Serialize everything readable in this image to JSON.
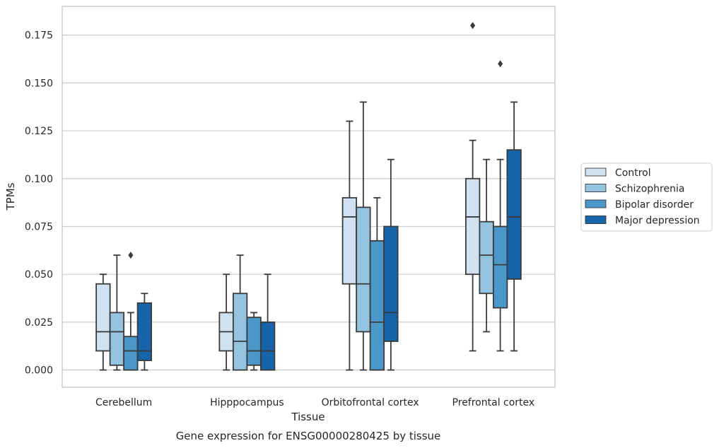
{
  "chart_data": {
    "type": "box",
    "title": "",
    "caption": "Gene expression for ENSG00000280425 by tissue",
    "xlabel": "Tissue",
    "ylabel": "TPMs",
    "ylim": [
      -0.009,
      0.19
    ],
    "yticks": [
      0.0,
      0.025,
      0.05,
      0.075,
      0.1,
      0.125,
      0.15,
      0.175
    ],
    "ytick_labels": [
      "0.000",
      "0.025",
      "0.050",
      "0.075",
      "0.100",
      "0.125",
      "0.150",
      "0.175"
    ],
    "grid": "horizontal",
    "legend_position": "right",
    "categories": [
      "Cerebellum",
      "Hipppocampus",
      "Orbitofrontal cortex",
      "Prefrontal cortex"
    ],
    "series": [
      {
        "name": "Control",
        "color": "#d0e1f2",
        "boxes": [
          {
            "whislo": 0.0,
            "q1": 0.01,
            "med": 0.02,
            "q3": 0.045,
            "whishi": 0.05,
            "fliers": []
          },
          {
            "whislo": 0.0,
            "q1": 0.01,
            "med": 0.02,
            "q3": 0.03,
            "whishi": 0.05,
            "fliers": []
          },
          {
            "whislo": 0.0,
            "q1": 0.045,
            "med": 0.08,
            "q3": 0.09,
            "whishi": 0.13,
            "fliers": []
          },
          {
            "whislo": 0.01,
            "q1": 0.05,
            "med": 0.08,
            "q3": 0.1,
            "whishi": 0.12,
            "fliers": [
              0.18
            ]
          }
        ]
      },
      {
        "name": "Schizophrenia",
        "color": "#94c4df",
        "boxes": [
          {
            "whislo": 0.0,
            "q1": 0.0025,
            "med": 0.02,
            "q3": 0.03,
            "whishi": 0.06,
            "fliers": []
          },
          {
            "whislo": 0.0,
            "q1": 0.0,
            "med": 0.015,
            "q3": 0.04,
            "whishi": 0.06,
            "fliers": []
          },
          {
            "whislo": 0.0,
            "q1": 0.02,
            "med": 0.045,
            "q3": 0.085,
            "whishi": 0.14,
            "fliers": []
          },
          {
            "whislo": 0.02,
            "q1": 0.04,
            "med": 0.06,
            "q3": 0.0775,
            "whishi": 0.11,
            "fliers": []
          }
        ]
      },
      {
        "name": "Bipolar disorder",
        "color": "#4a98c9",
        "boxes": [
          {
            "whislo": 0.0,
            "q1": 0.0,
            "med": 0.01,
            "q3": 0.0175,
            "whishi": 0.03,
            "fliers": [
              0.06
            ]
          },
          {
            "whislo": 0.0,
            "q1": 0.0025,
            "med": 0.01,
            "q3": 0.0275,
            "whishi": 0.03,
            "fliers": []
          },
          {
            "whislo": 0.0,
            "q1": 0.0,
            "med": 0.025,
            "q3": 0.0675,
            "whishi": 0.09,
            "fliers": []
          },
          {
            "whislo": 0.01,
            "q1": 0.0325,
            "med": 0.055,
            "q3": 0.075,
            "whishi": 0.11,
            "fliers": [
              0.16
            ]
          }
        ]
      },
      {
        "name": "Major depression",
        "color": "#1764ab",
        "boxes": [
          {
            "whislo": 0.0,
            "q1": 0.005,
            "med": 0.01,
            "q3": 0.035,
            "whishi": 0.04,
            "fliers": []
          },
          {
            "whislo": 0.0,
            "q1": 0.0,
            "med": 0.01,
            "q3": 0.025,
            "whishi": 0.05,
            "fliers": []
          },
          {
            "whislo": 0.0,
            "q1": 0.015,
            "med": 0.03,
            "q3": 0.075,
            "whishi": 0.11,
            "fliers": []
          },
          {
            "whislo": 0.01,
            "q1": 0.0475,
            "med": 0.08,
            "q3": 0.115,
            "whishi": 0.14,
            "fliers": []
          }
        ]
      }
    ]
  }
}
